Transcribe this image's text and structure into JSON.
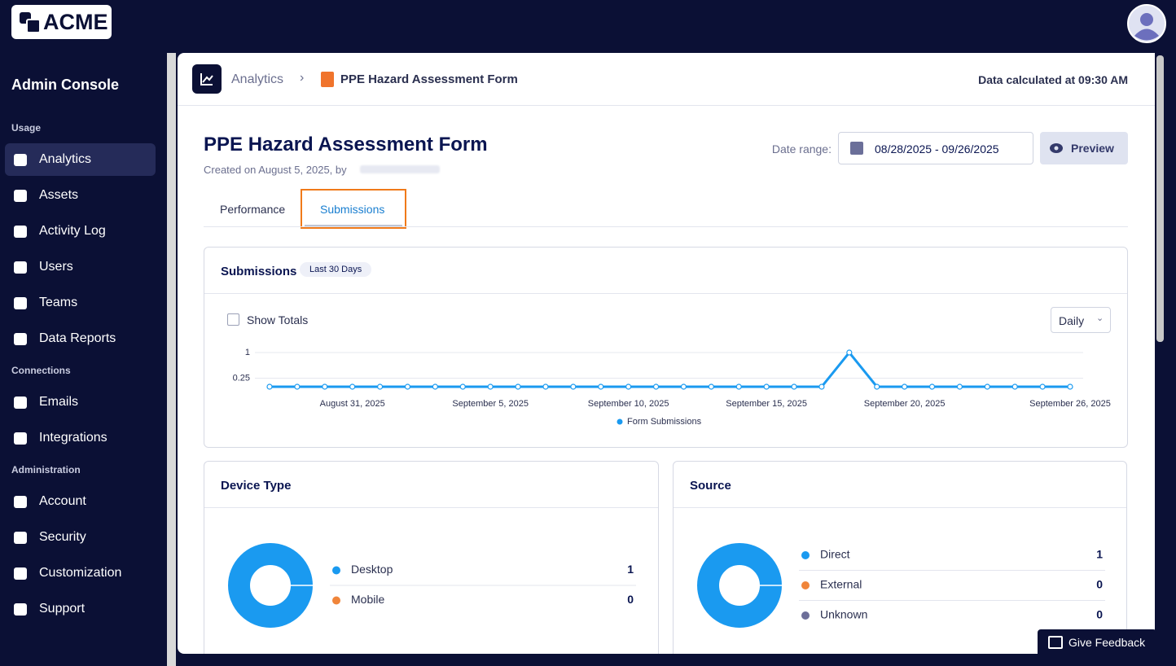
{
  "header": {
    "logo": "ACME"
  },
  "sidebar": {
    "title": "Admin Console",
    "sections": [
      {
        "label": "Usage",
        "items": [
          "Analytics",
          "Assets",
          "Activity Log",
          "Users",
          "Teams",
          "Data Reports"
        ]
      },
      {
        "label": "Connections",
        "items": [
          "Emails",
          "Integrations"
        ]
      },
      {
        "label": "Administration",
        "items": [
          "Account",
          "Security",
          "Customization",
          "Support"
        ]
      }
    ]
  },
  "topbar": {
    "breadcrumb": [
      "Analytics",
      "PPE Hazard Assessment Form"
    ],
    "calculated": "Data calculated at 09:30 AM"
  },
  "page": {
    "title": "PPE Hazard Assessment Form",
    "created": "Created on August 5, 2025, by",
    "date_range_label": "Date range:",
    "date_range": "08/28/2025 - 09/26/2025",
    "preview": "Preview",
    "tabs": [
      "Performance",
      "Submissions"
    ]
  },
  "submissions": {
    "title": "Submissions",
    "badge": "Last 30 Days",
    "show_totals": "Show Totals",
    "interval": "Daily",
    "chart_data": {
      "type": "line",
      "categories": [
        null,
        null,
        null,
        "August 31, 2025",
        null,
        null,
        null,
        null,
        "September 5, 2025",
        null,
        null,
        null,
        null,
        "September 10, 2025",
        null,
        null,
        null,
        null,
        "September 15, 2025",
        null,
        null,
        null,
        null,
        "September 20, 2025",
        null,
        null,
        null,
        null,
        null,
        "September 26, 2025"
      ],
      "series": [
        {
          "name": "Form Submissions",
          "color": "#1a9af0",
          "values": [
            0,
            0,
            0,
            0,
            0,
            0,
            0,
            0,
            0,
            0,
            0,
            0,
            0,
            0,
            0,
            0,
            0,
            0,
            0,
            0,
            0,
            1,
            0,
            0,
            0,
            0,
            0,
            0,
            0,
            0
          ]
        }
      ],
      "ylim": [
        0,
        1
      ],
      "yticks": [
        0.25,
        1
      ],
      "grid": true
    }
  },
  "device": {
    "title": "Device Type",
    "chart_data": {
      "type": "pie",
      "categories": [
        "Desktop",
        "Mobile"
      ],
      "values": [
        1,
        0
      ],
      "colors": [
        "#1a9af0",
        "#f0853a"
      ]
    }
  },
  "source": {
    "title": "Source",
    "chart_data": {
      "type": "pie",
      "categories": [
        "Direct",
        "External",
        "Unknown"
      ],
      "values": [
        1,
        0,
        0
      ],
      "colors": [
        "#1a9af0",
        "#f0853a",
        "#6d6f99"
      ]
    }
  },
  "feedback": "Give Feedback"
}
